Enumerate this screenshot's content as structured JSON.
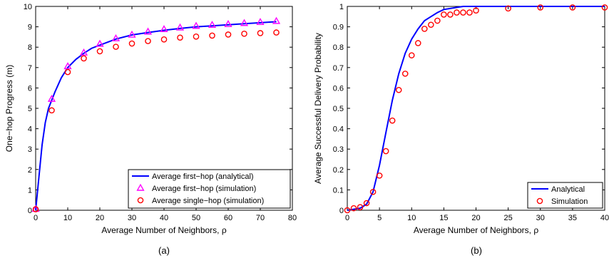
{
  "chart_data": [
    {
      "type": "line",
      "panel_label": "(a)",
      "xlabel": "Average Number of Neighbors, ρ",
      "ylabel": "One−hop Progress (m)",
      "xlim": [
        0,
        80
      ],
      "ylim": [
        0,
        10
      ],
      "xticks": [
        0,
        10,
        20,
        30,
        40,
        50,
        60,
        70,
        80
      ],
      "yticks": [
        0,
        1,
        2,
        3,
        4,
        5,
        6,
        7,
        8,
        9,
        10
      ],
      "grid": false,
      "legend_position": "bottom-right",
      "series": [
        {
          "name": "Average first−hop (analytical)",
          "style": "line",
          "color": "#0000ff",
          "x": [
            0,
            1,
            2,
            3,
            4,
            5,
            6,
            8,
            10,
            12.5,
            15,
            17.5,
            20,
            25,
            30,
            35,
            40,
            45,
            50,
            55,
            60,
            65,
            70,
            75
          ],
          "y": [
            0,
            1.6,
            3.2,
            4.3,
            5.0,
            5.4,
            5.8,
            6.5,
            7.0,
            7.4,
            7.7,
            7.95,
            8.1,
            8.4,
            8.6,
            8.72,
            8.83,
            8.92,
            9.0,
            9.05,
            9.1,
            9.15,
            9.2,
            9.25
          ]
        },
        {
          "name": "Average first−hop (simulation)",
          "style": "triangle",
          "color": "#ff00ff",
          "x": [
            0,
            5,
            10,
            15,
            20,
            25,
            30,
            35,
            40,
            45,
            50,
            55,
            60,
            65,
            70,
            75
          ],
          "y": [
            0.05,
            5.45,
            7.05,
            7.72,
            8.15,
            8.42,
            8.6,
            8.75,
            8.87,
            8.95,
            9.03,
            9.08,
            9.12,
            9.17,
            9.22,
            9.27
          ]
        },
        {
          "name": "Average single−hop (simulation)",
          "style": "circle",
          "color": "#ff0000",
          "x": [
            0,
            5,
            10,
            15,
            20,
            25,
            30,
            35,
            40,
            45,
            50,
            55,
            60,
            65,
            70,
            75
          ],
          "y": [
            0.05,
            4.9,
            6.78,
            7.45,
            7.8,
            8.02,
            8.18,
            8.3,
            8.38,
            8.47,
            8.52,
            8.57,
            8.62,
            8.66,
            8.69,
            8.72
          ]
        }
      ]
    },
    {
      "type": "line",
      "panel_label": "(b)",
      "xlabel": "Average Number of Neighbors, ρ",
      "ylabel": "Average Successful Delivery Probability",
      "xlim": [
        0,
        40
      ],
      "ylim": [
        0,
        1
      ],
      "xticks": [
        0,
        5,
        10,
        15,
        20,
        25,
        30,
        35,
        40
      ],
      "yticks": [
        0,
        0.1,
        0.2,
        0.3,
        0.4,
        0.5,
        0.6,
        0.7,
        0.8,
        0.9,
        1
      ],
      "grid": false,
      "legend_position": "bottom-right",
      "series": [
        {
          "name": "Analytical",
          "style": "line",
          "color": "#0000ff",
          "x": [
            0,
            1,
            2,
            3,
            4,
            5,
            6,
            7,
            8,
            9,
            10,
            11,
            12,
            13,
            14,
            15,
            16,
            17,
            18,
            20,
            25,
            30,
            35,
            40
          ],
          "y": [
            0,
            0.005,
            0.01,
            0.03,
            0.09,
            0.22,
            0.38,
            0.54,
            0.67,
            0.77,
            0.84,
            0.89,
            0.93,
            0.95,
            0.97,
            0.985,
            0.99,
            0.995,
            1.0,
            1.0,
            1.0,
            1.0,
            1.0,
            1.0
          ]
        },
        {
          "name": "Simulation",
          "style": "circle",
          "color": "#ff0000",
          "x": [
            0,
            1,
            2,
            3,
            4,
            5,
            6,
            7,
            8,
            9,
            10,
            11,
            12,
            13,
            14,
            15,
            16,
            17,
            18,
            19,
            20,
            25,
            30,
            35,
            40
          ],
          "y": [
            0,
            0.01,
            0.015,
            0.035,
            0.09,
            0.17,
            0.29,
            0.44,
            0.59,
            0.67,
            0.76,
            0.82,
            0.89,
            0.91,
            0.93,
            0.96,
            0.96,
            0.97,
            0.97,
            0.97,
            0.98,
            0.99,
            0.995,
            0.995,
            0.995
          ]
        }
      ]
    }
  ]
}
